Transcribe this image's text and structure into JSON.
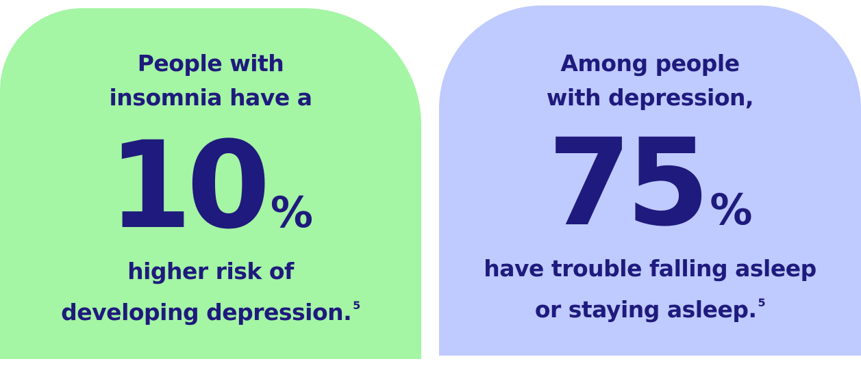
{
  "cards": [
    {
      "intro": [
        "People with",
        "insomnia have a"
      ],
      "number": "10",
      "unit": "%",
      "outro": [
        "higher risk of",
        "developing depression."
      ],
      "footnote": "5"
    },
    {
      "intro": [
        "Among people",
        "with depression,"
      ],
      "number": "75",
      "unit": "%",
      "outro": [
        "have trouble falling asleep",
        "or staying asleep."
      ],
      "footnote": "5"
    }
  ]
}
